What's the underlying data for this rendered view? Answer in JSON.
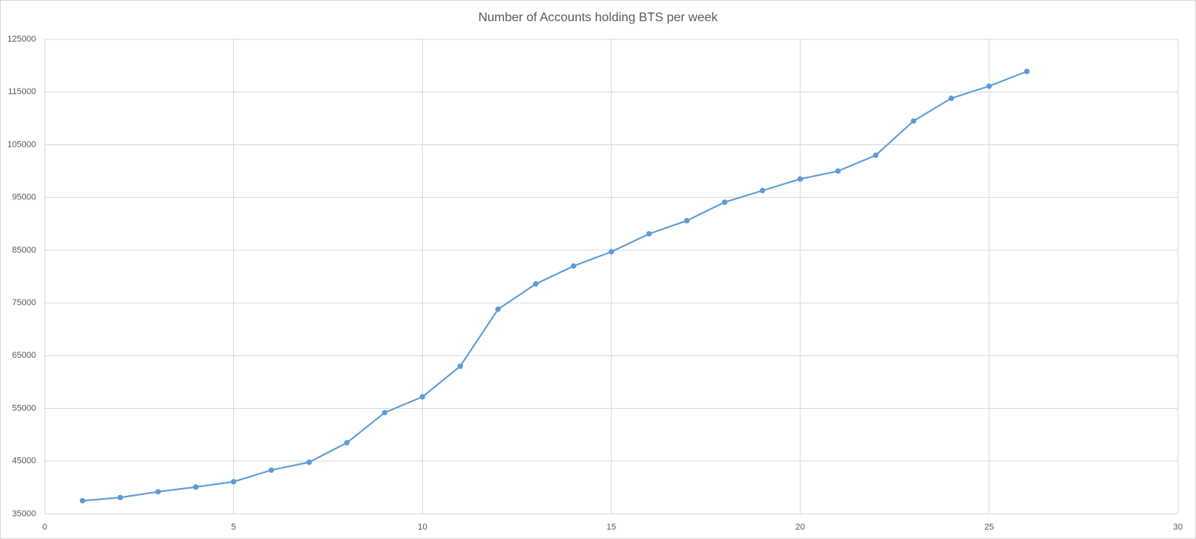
{
  "chart_data": {
    "type": "line",
    "title": "Number of Accounts holding BTS per week",
    "x": [
      1,
      2,
      3,
      4,
      5,
      6,
      7,
      8,
      9,
      10,
      11,
      12,
      13,
      14,
      15,
      16,
      17,
      18,
      19,
      20,
      21,
      22,
      23,
      24,
      25,
      26
    ],
    "series": [
      {
        "name": "Accounts",
        "color": "#5b9bd5",
        "values": [
          37500,
          38100,
          39200,
          40100,
          41100,
          43300,
          44800,
          48500,
          54200,
          57200,
          63000,
          73800,
          78600,
          82000,
          84700,
          88100,
          90600,
          94100,
          96300,
          98500,
          100000,
          103000,
          109500,
          113800,
          116100,
          118900
        ]
      }
    ],
    "xlim": [
      0,
      30
    ],
    "xticks": [
      0,
      5,
      10,
      15,
      20,
      25,
      30
    ],
    "ylim": [
      35000,
      125000
    ],
    "yticks": [
      35000,
      45000,
      55000,
      65000,
      75000,
      85000,
      95000,
      105000,
      115000,
      125000
    ],
    "grid": true,
    "markers": true
  }
}
